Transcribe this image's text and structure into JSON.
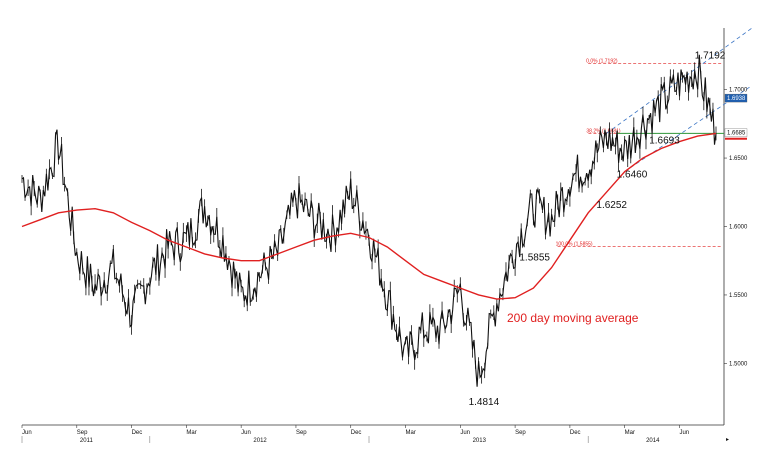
{
  "chart_data": {
    "type": "candlestick-line",
    "title": "",
    "xlabel": "",
    "ylabel": "",
    "ylim": [
      1.455,
      1.745
    ],
    "y_ticks": [
      "1.7000",
      "1.6500",
      "1.6000",
      "1.5500",
      "1.5000"
    ],
    "x_ticks": [
      "Jun",
      "Sep",
      "Dec",
      "Mar",
      "Jun",
      "Sep",
      "Dec",
      "Mar",
      "Jun",
      "Sep",
      "Dec",
      "Mar",
      "Jun"
    ],
    "years": [
      "2011",
      "2012",
      "2013",
      "2014"
    ],
    "price_series": {
      "name": "",
      "dates": [
        "2011-06",
        "2011-07",
        "2011-08",
        "2011-09",
        "2011-10",
        "2011-11",
        "2011-12",
        "2012-01",
        "2012-02",
        "2012-03",
        "2012-04",
        "2012-05",
        "2012-06",
        "2012-07",
        "2012-08",
        "2012-09",
        "2012-10",
        "2012-11",
        "2012-12",
        "2013-01",
        "2013-02",
        "2013-03",
        "2013-04",
        "2013-05",
        "2013-06",
        "2013-07",
        "2013-08",
        "2013-09",
        "2013-10",
        "2013-11",
        "2013-12",
        "2014-01",
        "2014-02",
        "2014-03",
        "2014-04",
        "2014-05",
        "2014-06",
        "2014-07",
        "2014-08"
      ],
      "values": [
        1.635,
        1.62,
        1.66,
        1.58,
        1.555,
        1.57,
        1.535,
        1.565,
        1.585,
        1.59,
        1.615,
        1.59,
        1.55,
        1.565,
        1.58,
        1.62,
        1.605,
        1.595,
        1.625,
        1.595,
        1.55,
        1.505,
        1.525,
        1.525,
        1.555,
        1.49,
        1.545,
        1.585,
        1.615,
        1.605,
        1.635,
        1.645,
        1.665,
        1.655,
        1.675,
        1.69,
        1.705,
        1.715,
        1.668
      ]
    },
    "moving_average": {
      "label": "200 day moving average",
      "values": [
        1.6,
        1.605,
        1.61,
        1.612,
        1.613,
        1.61,
        1.603,
        1.597,
        1.59,
        1.585,
        1.58,
        1.577,
        1.575,
        1.575,
        1.58,
        1.585,
        1.59,
        1.593,
        1.595,
        1.592,
        1.585,
        1.575,
        1.565,
        1.56,
        1.555,
        1.55,
        1.547,
        1.548,
        1.555,
        1.57,
        1.59,
        1.61,
        1.625,
        1.64,
        1.65,
        1.657,
        1.662,
        1.666,
        1.668
      ]
    },
    "fibonacci": [
      {
        "label": "0.0% (1.7192)",
        "value": 1.7192
      },
      {
        "label": "38.2% (1.6681)",
        "value": 1.6681
      },
      {
        "label": "100.0% (1.5855)",
        "value": 1.5855
      }
    ],
    "annotations": [
      {
        "text": "1.7192",
        "x": "2014-07",
        "y": 1.7192
      },
      {
        "text": "1.6693",
        "x": "2014-05",
        "y": 1.6693
      },
      {
        "text": "1.6460",
        "x": "2014-03",
        "y": 1.646
      },
      {
        "text": "1.6252",
        "x": "2014-02",
        "y": 1.6252
      },
      {
        "text": "1.5855",
        "x": "2013-10",
        "y": 1.5855
      },
      {
        "text": "1.4814",
        "x": "2013-07",
        "y": 1.4814
      }
    ],
    "right_badges": [
      {
        "text": "1.6938",
        "value": 1.6938,
        "bg": "#1f5fb0",
        "fg": "#ffffff"
      },
      {
        "text": "1.6685",
        "value": 1.6685,
        "bg": "#ffffff",
        "fg": "#111111"
      }
    ],
    "colors": {
      "price": "#111111",
      "ma": "#e02020",
      "fib": "#e02020",
      "channel": "#3a74c4",
      "support": "#2f9a3c"
    },
    "grid": false,
    "legend": "none"
  }
}
